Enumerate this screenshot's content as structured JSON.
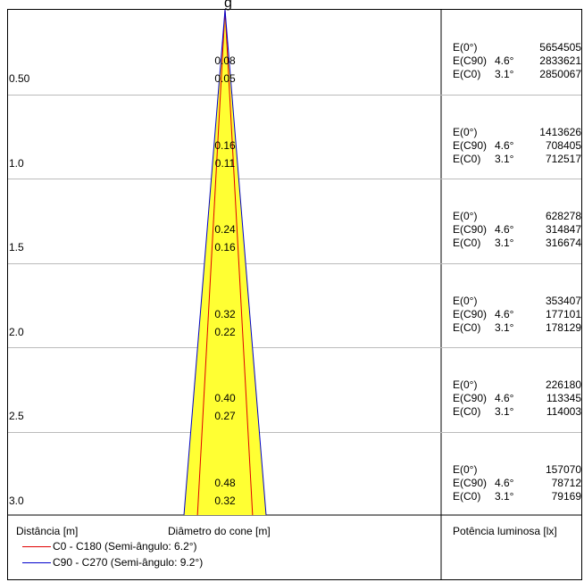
{
  "chart_data": {
    "type": "cone_diagram",
    "title": "g",
    "distance_label": "Distância [m]",
    "diameter_label": "Diâmetro do cone [m]",
    "illuminance_label": "Potência luminosa [lx]",
    "fill_color": "#ffff33",
    "rows": [
      {
        "distance": "0.50",
        "dia_c90": "0.08",
        "dia_c0": "0.05",
        "e0": "5654505",
        "ec90_angle": "4.6°",
        "ec90": "2833621",
        "ec0_angle": "3.1°",
        "ec0": "2850067"
      },
      {
        "distance": "1.0",
        "dia_c90": "0.16",
        "dia_c0": "0.11",
        "e0": "1413626",
        "ec90_angle": "4.6°",
        "ec90": "708405",
        "ec0_angle": "3.1°",
        "ec0": "712517"
      },
      {
        "distance": "1.5",
        "dia_c90": "0.24",
        "dia_c0": "0.16",
        "e0": "628278",
        "ec90_angle": "4.6°",
        "ec90": "314847",
        "ec0_angle": "3.1°",
        "ec0": "316674"
      },
      {
        "distance": "2.0",
        "dia_c90": "0.32",
        "dia_c0": "0.22",
        "e0": "353407",
        "ec90_angle": "4.6°",
        "ec90": "177101",
        "ec0_angle": "3.1°",
        "ec0": "178129"
      },
      {
        "distance": "2.5",
        "dia_c90": "0.40",
        "dia_c0": "0.27",
        "e0": "226180",
        "ec90_angle": "4.6°",
        "ec90": "113345",
        "ec0_angle": "3.1°",
        "ec0": "114003"
      },
      {
        "distance": "3.0",
        "dia_c90": "0.48",
        "dia_c0": "0.32",
        "e0": "157070",
        "ec90_angle": "4.6°",
        "ec90": "78712",
        "ec0_angle": "3.1°",
        "ec0": "79169"
      }
    ],
    "row_labels": {
      "e0": "E(0°)",
      "ec90": "E(C90)",
      "ec0": "E(C0)"
    },
    "series": [
      {
        "name": "C0 - C180 (Semi-ângulo: 6.2°)",
        "color": "#e00000",
        "semi_angle": 6.2
      },
      {
        "name": "C90 - C270 (Semi-ângulo: 9.2°)",
        "color": "#0000cc",
        "semi_angle": 9.2
      }
    ]
  }
}
